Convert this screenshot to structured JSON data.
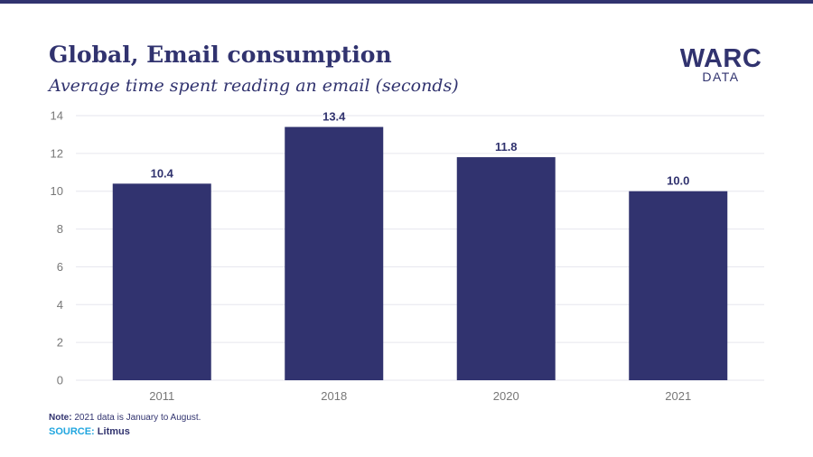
{
  "header": {
    "title": "Global, Email consumption",
    "subtitle": "Average time spent reading an email (seconds)"
  },
  "logo": {
    "main": "WARC",
    "sub": "DATA"
  },
  "footer": {
    "note_label": "Note:",
    "note_text": "2021 data is January to August.",
    "source_label": "SOURCE:",
    "source_value": "Litmus"
  },
  "colors": {
    "bar": "#31336f",
    "accent": "#21a6df"
  },
  "chart_data": {
    "type": "bar",
    "title": "Global, Email consumption",
    "subtitle": "Average time spent reading an email (seconds)",
    "categories": [
      "2011",
      "2018",
      "2020",
      "2021"
    ],
    "values": [
      10.4,
      13.4,
      11.8,
      10.0
    ],
    "value_labels": [
      "10.4",
      "13.4",
      "11.8",
      "10.0"
    ],
    "y_ticks": [
      "0",
      "2",
      "4",
      "6",
      "8",
      "10",
      "12",
      "14"
    ],
    "ylim": [
      0,
      14
    ],
    "xlabel": "",
    "ylabel": "",
    "grid": true
  }
}
